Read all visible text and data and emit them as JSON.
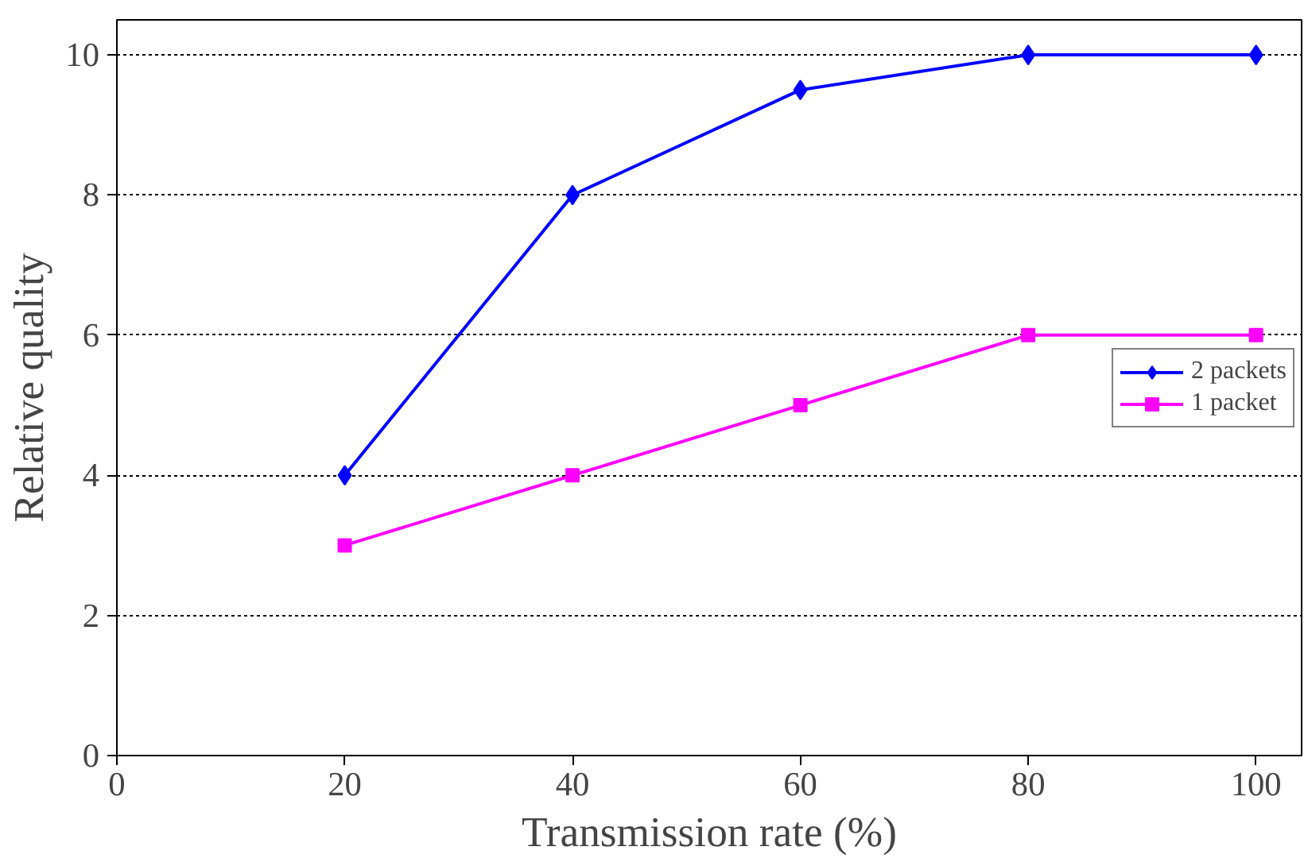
{
  "chart_data": {
    "type": "line",
    "xlabel": "Transmission rate (%)",
    "ylabel": "Relative quality",
    "x": [
      20,
      40,
      60,
      80,
      100
    ],
    "series": [
      {
        "name": "2 packets",
        "color": "#0000ff",
        "marker": "diamond",
        "values": [
          4,
          8,
          9.5,
          10,
          10
        ]
      },
      {
        "name": "1 packet",
        "color": "#ff00ff",
        "marker": "square",
        "values": [
          3,
          4,
          5,
          6,
          6
        ]
      }
    ],
    "xlim": [
      0,
      104
    ],
    "ylim": [
      0,
      10.5
    ],
    "xticks": [
      0,
      20,
      40,
      60,
      80,
      100
    ],
    "yticks": [
      0,
      2,
      4,
      6,
      8,
      10
    ],
    "grid": "y",
    "legend": "right",
    "line_style": "solid"
  }
}
